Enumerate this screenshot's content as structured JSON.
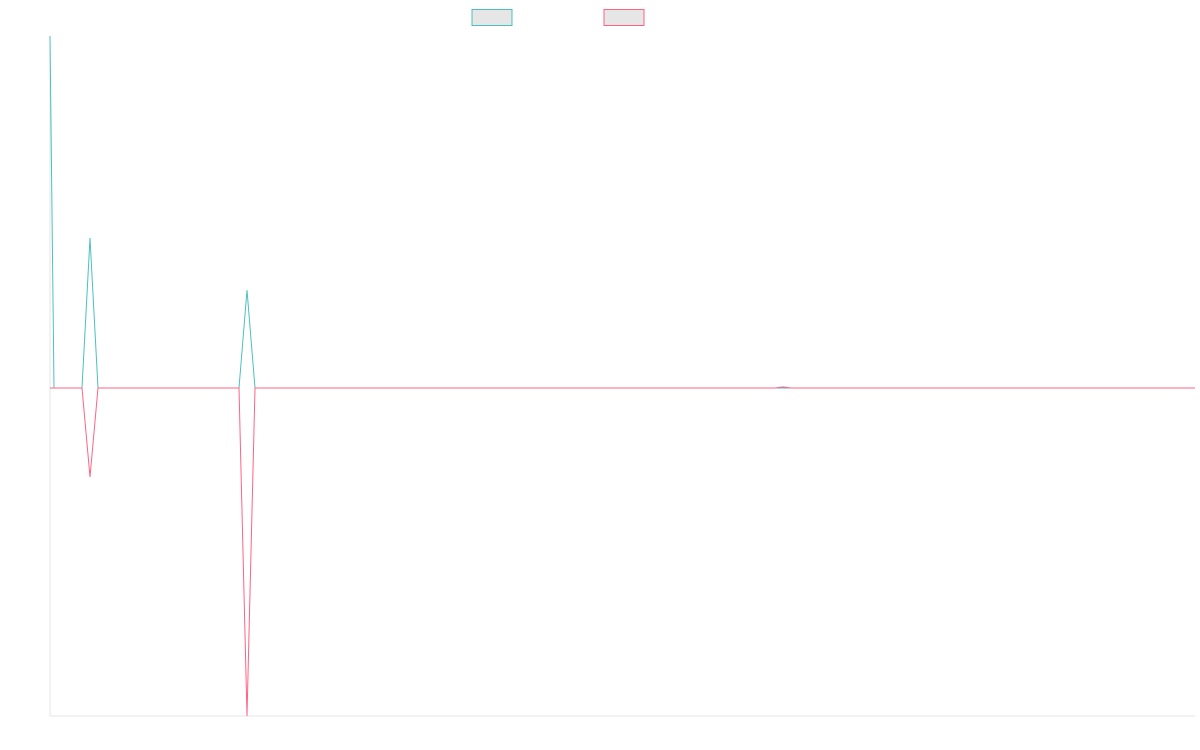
{
  "chart_data": {
    "type": "line",
    "x": [
      0,
      4,
      32,
      40,
      48,
      189,
      197,
      205,
      725,
      733,
      741,
      1145
    ],
    "series": [
      {
        "color": "#4bc0c0",
        "values": [
          100,
          0,
          0,
          42.6,
          0,
          0,
          27.8,
          0,
          0,
          0,
          0,
          0
        ]
      },
      {
        "color": "#ff6384",
        "values": [
          0,
          0,
          0,
          -25.3,
          0,
          0,
          -93.2,
          0,
          0,
          0.3,
          0,
          0
        ]
      }
    ],
    "xlim": [
      0,
      1145
    ],
    "ylim": [
      -93.2,
      100
    ]
  }
}
